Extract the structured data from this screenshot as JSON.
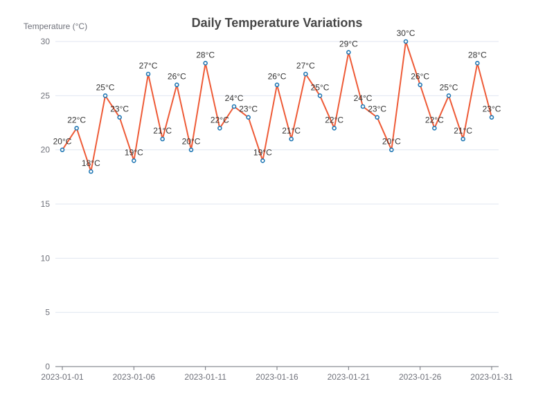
{
  "chart_data": {
    "type": "line",
    "title": "Daily Temperature Variations",
    "ylabel": "Temperature (°C)",
    "xlabel": "",
    "ylim": [
      0,
      30
    ],
    "yticks": [
      0,
      5,
      10,
      15,
      20,
      25,
      30
    ],
    "x_tick_labels": [
      "2023-01-01",
      "2023-01-06",
      "2023-01-11",
      "2023-01-16",
      "2023-01-21",
      "2023-01-26",
      "2023-01-31"
    ],
    "x": [
      "2023-01-01",
      "2023-01-02",
      "2023-01-03",
      "2023-01-04",
      "2023-01-05",
      "2023-01-06",
      "2023-01-07",
      "2023-01-08",
      "2023-01-09",
      "2023-01-10",
      "2023-01-11",
      "2023-01-12",
      "2023-01-13",
      "2023-01-14",
      "2023-01-15",
      "2023-01-16",
      "2023-01-17",
      "2023-01-18",
      "2023-01-19",
      "2023-01-20",
      "2023-01-21",
      "2023-01-22",
      "2023-01-23",
      "2023-01-24",
      "2023-01-25",
      "2023-01-26",
      "2023-01-27",
      "2023-01-28",
      "2023-01-29",
      "2023-01-30",
      "2023-01-31"
    ],
    "values": [
      20,
      22,
      18,
      25,
      23,
      19,
      27,
      21,
      26,
      20,
      28,
      22,
      24,
      23,
      19,
      26,
      21,
      27,
      25,
      22,
      29,
      24,
      23,
      20,
      30,
      26,
      22,
      25,
      21,
      28,
      23
    ],
    "data_labels": [
      "20°C",
      "22°C",
      "18°C",
      "25°C",
      "23°C",
      "19°C",
      "27°C",
      "21°C",
      "26°C",
      "20°C",
      "28°C",
      "22°C",
      "24°C",
      "23°C",
      "19°C",
      "26°C",
      "21°C",
      "27°C",
      "25°C",
      "22°C",
      "29°C",
      "24°C",
      "23°C",
      "20°C",
      "30°C",
      "26°C",
      "22°C",
      "25°C",
      "21°C",
      "28°C",
      "23°C"
    ],
    "grid": true,
    "colors": {
      "line": "#ee5a36",
      "marker": "#1f77b4"
    }
  }
}
